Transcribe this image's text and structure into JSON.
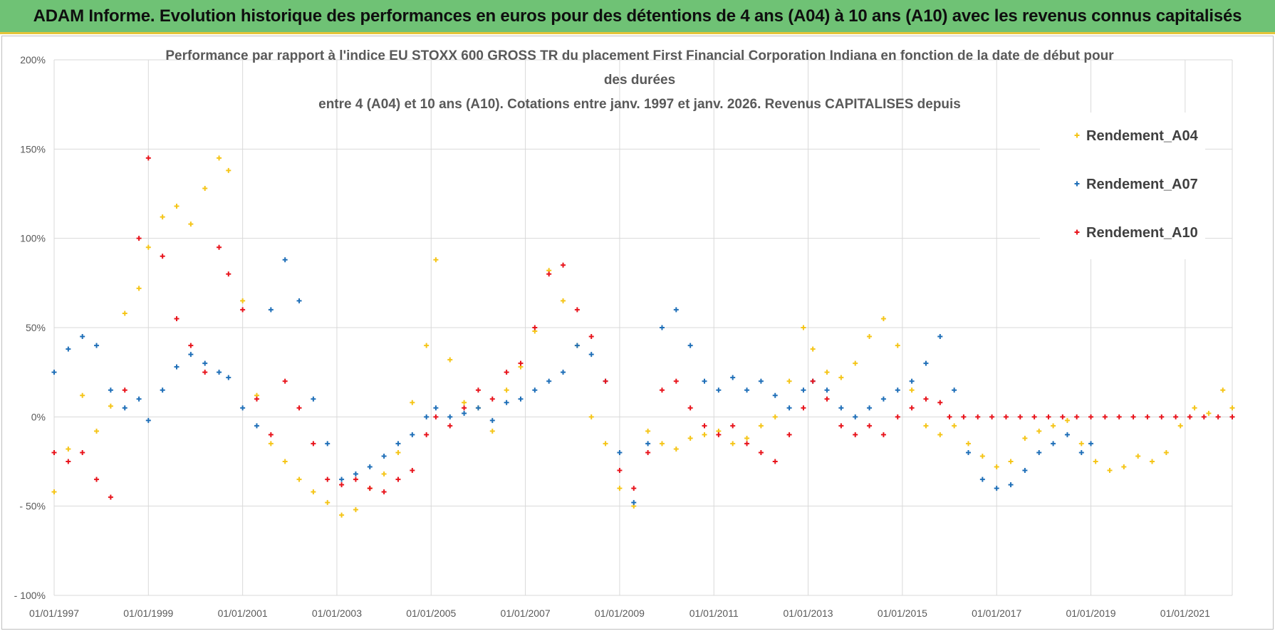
{
  "header": {
    "title": "ADAM Informe. Evolution historique des performances en euros pour des détentions de 4 ans (A04) à 10 ans (A10) avec les revenus connus capitalisés"
  },
  "colors": {
    "A04": "#f5c518",
    "A07": "#1f6fb8",
    "A10": "#e8141c",
    "banner": "#6fc275"
  },
  "chart_data": {
    "type": "scatter",
    "title_lines": [
      "Performance par rapport à l'indice EU STOXX 600 GROSS TR  du placement First Financial Corporation Indiana en fonction de la date de début pour",
      "des durées",
      "entre 4 (A04) et 10 ans (A10).  Cotations entre janv. 1997 et janv. 2026. Revenus CAPITALISES depuis"
    ],
    "xlabel": "",
    "ylabel": "",
    "xlim": [
      1997.0,
      2022.0
    ],
    "ylim": [
      -100,
      200
    ],
    "grid": true,
    "x_tick_labels": [
      "01/01/1997",
      "01/01/1999",
      "01/01/2001",
      "01/01/2003",
      "01/01/2005",
      "01/01/2007",
      "01/01/2009",
      "01/01/2011",
      "01/01/2013",
      "01/01/2015",
      "01/01/2017",
      "01/01/2019",
      "01/01/2021"
    ],
    "x_tick_values": [
      1997,
      1999,
      2001,
      2003,
      2005,
      2007,
      2009,
      2011,
      2013,
      2015,
      2017,
      2019,
      2021
    ],
    "y_tick_labels": [
      "200%",
      "150%",
      "100%",
      "50%",
      "0%",
      "- 50%",
      "- 100%"
    ],
    "y_tick_values": [
      200,
      150,
      100,
      50,
      0,
      -50,
      -100
    ],
    "legend_position": "top-right",
    "series": [
      {
        "name": "Rendement_A04",
        "x": [
          1997.0,
          1997.3,
          1997.6,
          1997.9,
          1998.2,
          1998.5,
          1998.8,
          1999.0,
          1999.3,
          1999.6,
          1999.9,
          2000.2,
          2000.5,
          2000.7,
          2001.0,
          2001.3,
          2001.6,
          2001.9,
          2002.2,
          2002.5,
          2002.8,
          2003.1,
          2003.4,
          2003.7,
          2004.0,
          2004.3,
          2004.6,
          2004.9,
          2005.1,
          2005.4,
          2005.7,
          2006.0,
          2006.3,
          2006.6,
          2006.9,
          2007.2,
          2007.5,
          2007.8,
          2008.1,
          2008.4,
          2008.7,
          2009.0,
          2009.3,
          2009.6,
          2009.9,
          2010.2,
          2010.5,
          2010.8,
          2011.1,
          2011.4,
          2011.7,
          2012.0,
          2012.3,
          2012.6,
          2012.9,
          2013.1,
          2013.4,
          2013.7,
          2014.0,
          2014.3,
          2014.6,
          2014.9,
          2015.2,
          2015.5,
          2015.8,
          2016.1,
          2016.4,
          2016.7,
          2017.0,
          2017.3,
          2017.6,
          2017.9,
          2018.2,
          2018.5,
          2018.8,
          2019.1,
          2019.4,
          2019.7,
          2020.0,
          2020.3,
          2020.6,
          2020.9,
          2021.2,
          2021.5,
          2021.8,
          2022.0
        ],
        "y": [
          -42,
          -18,
          12,
          -8,
          6,
          58,
          72,
          95,
          112,
          118,
          108,
          128,
          145,
          138,
          65,
          12,
          -15,
          -25,
          -35,
          -42,
          -48,
          -55,
          -52,
          -40,
          -32,
          -20,
          8,
          40,
          88,
          32,
          8,
          5,
          -8,
          15,
          28,
          48,
          82,
          65,
          40,
          0,
          -15,
          -40,
          -50,
          -8,
          -15,
          -18,
          -12,
          -10,
          -8,
          -15,
          -12,
          -5,
          0,
          20,
          50,
          38,
          25,
          22,
          30,
          45,
          55,
          40,
          15,
          -5,
          -10,
          -5,
          -15,
          -22,
          -28,
          -25,
          -12,
          -8,
          -5,
          -2,
          -15,
          -25,
          -30,
          -28,
          -22,
          -25,
          -20,
          -5,
          5,
          2,
          15,
          5
        ]
      },
      {
        "name": "Rendement_A07",
        "x": [
          1997.0,
          1997.3,
          1997.6,
          1997.9,
          1998.2,
          1998.5,
          1998.8,
          1999.0,
          1999.3,
          1999.6,
          1999.9,
          2000.2,
          2000.5,
          2000.7,
          2001.0,
          2001.3,
          2001.6,
          2001.9,
          2002.2,
          2002.5,
          2002.8,
          2003.1,
          2003.4,
          2003.7,
          2004.0,
          2004.3,
          2004.6,
          2004.9,
          2005.1,
          2005.4,
          2005.7,
          2006.0,
          2006.3,
          2006.6,
          2006.9,
          2007.2,
          2007.5,
          2007.8,
          2008.1,
          2008.4,
          2008.7,
          2009.0,
          2009.3,
          2009.6,
          2009.9,
          2010.2,
          2010.5,
          2010.8,
          2011.1,
          2011.4,
          2011.7,
          2012.0,
          2012.3,
          2012.6,
          2012.9,
          2013.1,
          2013.4,
          2013.7,
          2014.0,
          2014.3,
          2014.6,
          2014.9,
          2015.2,
          2015.5,
          2015.8,
          2016.1,
          2016.4,
          2016.7,
          2017.0,
          2017.3,
          2017.6,
          2017.9,
          2018.2,
          2018.5,
          2018.8,
          2019.0
        ],
        "y": [
          25,
          38,
          45,
          40,
          15,
          5,
          10,
          -2,
          15,
          28,
          35,
          30,
          25,
          22,
          5,
          -5,
          60,
          88,
          65,
          10,
          -15,
          -35,
          -32,
          -28,
          -22,
          -15,
          -10,
          0,
          5,
          0,
          2,
          5,
          -2,
          8,
          10,
          15,
          20,
          25,
          40,
          35,
          20,
          -20,
          -48,
          -15,
          50,
          60,
          40,
          20,
          15,
          22,
          15,
          20,
          12,
          5,
          15,
          20,
          15,
          5,
          0,
          5,
          10,
          15,
          20,
          30,
          45,
          15,
          -20,
          -35,
          -40,
          -38,
          -30,
          -20,
          -15,
          -10,
          -20,
          -15
        ]
      },
      {
        "name": "Rendement_A10",
        "x": [
          1997.0,
          1997.3,
          1997.6,
          1997.9,
          1998.2,
          1998.5,
          1998.8,
          1999.0,
          1999.3,
          1999.6,
          1999.9,
          2000.2,
          2000.5,
          2000.7,
          2001.0,
          2001.3,
          2001.6,
          2001.9,
          2002.2,
          2002.5,
          2002.8,
          2003.1,
          2003.4,
          2003.7,
          2004.0,
          2004.3,
          2004.6,
          2004.9,
          2005.1,
          2005.4,
          2005.7,
          2006.0,
          2006.3,
          2006.6,
          2006.9,
          2007.2,
          2007.5,
          2007.8,
          2008.1,
          2008.4,
          2008.7,
          2009.0,
          2009.3,
          2009.6,
          2009.9,
          2010.2,
          2010.5,
          2010.8,
          2011.1,
          2011.4,
          2011.7,
          2012.0,
          2012.3,
          2012.6,
          2012.9,
          2013.1,
          2013.4,
          2013.7,
          2014.0,
          2014.3,
          2014.6,
          2014.9,
          2015.2,
          2015.5,
          2015.8,
          2016.0,
          2016.3,
          2016.6,
          2016.9,
          2017.2,
          2017.5,
          2017.8,
          2018.1,
          2018.4,
          2018.7,
          2019.0,
          2019.3,
          2019.6,
          2019.9,
          2020.2,
          2020.5,
          2020.8,
          2021.1,
          2021.4,
          2021.7,
          2022.0
        ],
        "y": [
          -20,
          -25,
          -20,
          -35,
          -45,
          15,
          100,
          145,
          90,
          55,
          40,
          25,
          95,
          80,
          60,
          10,
          -10,
          20,
          5,
          -15,
          -35,
          -38,
          -35,
          -40,
          -42,
          -35,
          -30,
          -10,
          0,
          -5,
          5,
          15,
          10,
          25,
          30,
          50,
          80,
          85,
          60,
          45,
          20,
          -30,
          -40,
          -20,
          15,
          20,
          5,
          -5,
          -10,
          -5,
          -15,
          -20,
          -25,
          -10,
          5,
          20,
          10,
          -5,
          -10,
          -5,
          -10,
          0,
          5,
          10,
          8,
          0,
          0,
          0,
          0,
          0,
          0,
          0,
          0,
          0,
          0,
          0,
          0,
          0,
          0,
          0,
          0,
          0,
          0,
          0,
          0,
          0
        ]
      }
    ]
  }
}
